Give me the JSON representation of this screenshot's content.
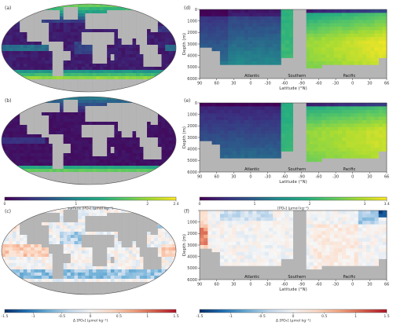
{
  "panels": {
    "a": "(a)",
    "b": "(b)",
    "c": "(c)",
    "d": "(d)",
    "e": "(e)",
    "f": "(f)"
  },
  "colors": {
    "land": "#b5b5b5",
    "viridis": [
      "#440154",
      "#3b2f80",
      "#2c5c8b",
      "#21908c",
      "#27ad81",
      "#5ec962",
      "#aadc32",
      "#fde725"
    ],
    "diverging": [
      "#08306b",
      "#2171b5",
      "#6baed6",
      "#c6dbef",
      "#f7f7f7",
      "#fddbc7",
      "#f4a582",
      "#d6604d",
      "#b2182b"
    ]
  },
  "chart_data": [
    {
      "panel": "a",
      "type": "heatmap",
      "kind": "map",
      "quantity": "surface [PO4]",
      "colorbar": {
        "label": "surface [PO₄] (µmol kg⁻¹)",
        "ticks": [
          0,
          1,
          2,
          2.4
        ],
        "tick_labels": [
          "0",
          "1",
          "2",
          "2.4"
        ],
        "range": [
          0,
          2.4
        ]
      }
    },
    {
      "panel": "b",
      "type": "heatmap",
      "kind": "map",
      "quantity": "surface [PO4]"
    },
    {
      "panel": "c",
      "type": "heatmap",
      "kind": "map",
      "quantity": "Δ surface [PO4]",
      "colorbar": {
        "label": "Δ [PO₄] (µmol kg⁻¹)",
        "ticks": [
          -1.5,
          -1,
          -0.5,
          0,
          0.5,
          1,
          1.5
        ],
        "tick_labels": [
          "-1.5",
          "-1",
          "-0.5",
          "0",
          "0.5",
          "1",
          "1.5"
        ],
        "range": [
          -1.5,
          1.5
        ]
      }
    },
    {
      "panel": "d",
      "type": "heatmap",
      "kind": "section",
      "ylabel": "Depth (m)",
      "xlabel": "Latitude (°N)",
      "y_ticks": [
        "0",
        "1000",
        "2000",
        "3000",
        "4000",
        "5000",
        "6000"
      ],
      "x_ticks": [
        "90",
        "60",
        "30",
        "0",
        "-30",
        "-60",
        "-90",
        "-60",
        "-30",
        "0",
        "30",
        "66"
      ],
      "basins": [
        "Atlantic",
        "Southern",
        "Pacific"
      ],
      "ylim": [
        0,
        6000
      ]
    },
    {
      "panel": "e",
      "type": "heatmap",
      "kind": "section",
      "ylabel": "Depth (m)",
      "xlabel": "Latitude (°N)",
      "y_ticks": [
        "0",
        "1000",
        "2000",
        "3000",
        "4000",
        "5000",
        "6000"
      ],
      "x_ticks": [
        "90",
        "60",
        "30",
        "0",
        "-30",
        "-60",
        "-90",
        "-60",
        "-30",
        "0",
        "30",
        "66"
      ],
      "basins": [
        "Atlantic",
        "Southern",
        "Pacific"
      ],
      "ylim": [
        0,
        6000
      ],
      "colorbar": {
        "label": "[PO₄] (µmol kg⁻¹)",
        "ticks": [
          0,
          1,
          2,
          3,
          3.4
        ],
        "tick_labels": [
          "0",
          "1",
          "2",
          "3",
          "3.4"
        ],
        "range": [
          0,
          3.4
        ]
      }
    },
    {
      "panel": "f",
      "type": "heatmap",
      "kind": "section",
      "ylabel": "Depth (m)",
      "xlabel": "Latitude (°N)",
      "y_ticks": [
        "",
        "1000",
        "2000",
        "3000",
        "4000",
        "5000",
        "6000"
      ],
      "x_ticks": [
        "90",
        "60",
        "30",
        "0",
        "-30",
        "-60",
        "-90",
        "-60",
        "-30",
        "0",
        "30",
        "66"
      ],
      "basins": [
        "Atlantic",
        "Southern",
        "Pacific"
      ],
      "ylim": [
        0,
        6000
      ],
      "colorbar": {
        "label": "Δ [PO₄] (µmol kg⁻¹)",
        "ticks": [
          -1.5,
          -1,
          -0.5,
          0,
          0.5,
          1,
          1.5
        ],
        "tick_labels": [
          "-1.5",
          "-1",
          "-0.5",
          "0",
          "0.5",
          "1",
          "1.5"
        ],
        "range": [
          -1.5,
          1.5
        ]
      }
    }
  ]
}
